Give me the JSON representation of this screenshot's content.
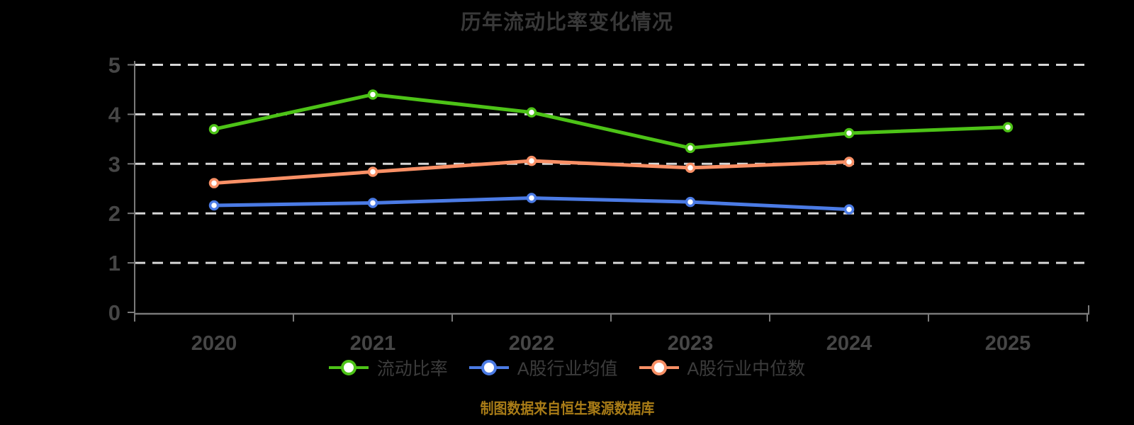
{
  "page": {
    "background": "#000000"
  },
  "chart_data": {
    "type": "line",
    "title": "历年流动比率变化情况",
    "x": [
      "2020",
      "2021",
      "2022",
      "2023",
      "2024",
      "2025"
    ],
    "xlabel": "",
    "ylabel": "",
    "ylim": [
      0,
      5
    ],
    "yticks": [
      0,
      1,
      2,
      3,
      4,
      5
    ],
    "grid": "horizontal-dashed",
    "legend_position": "bottom",
    "series": [
      {
        "name": "流动比率",
        "color": "#4dc317",
        "values": [
          3.7,
          4.4,
          4.04,
          3.32,
          3.62,
          3.74
        ]
      },
      {
        "name": "A股行业均值",
        "color": "#4b7be5",
        "values": [
          2.16,
          2.21,
          2.31,
          2.23,
          2.08,
          null
        ]
      },
      {
        "name": "A股行业中位数",
        "color": "#f99066",
        "values": [
          2.61,
          2.84,
          3.06,
          2.92,
          3.04,
          null
        ]
      }
    ],
    "colors": {
      "grid_line": "#d6d6d6",
      "axis_line": "#7a7a7a",
      "tick_label": "#464646",
      "title_text": "#383838",
      "legend_text": "#3c3c3c",
      "marker_fill": "#ffffff"
    }
  },
  "source_note": {
    "text": "制图数据来自恒生聚源数据库",
    "color": "#a97c17"
  }
}
